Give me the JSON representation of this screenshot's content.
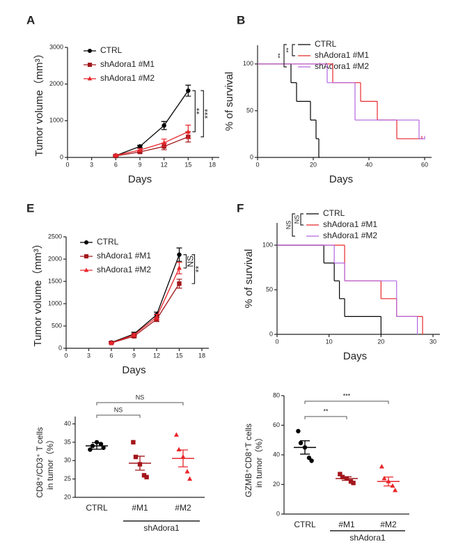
{
  "chart_data": [
    {
      "type": "line",
      "panel": "A",
      "ylabel": "Tumor volume（mm³）",
      "xlabel": "Days",
      "x": [
        6,
        9,
        12,
        15
      ],
      "xlim": [
        0,
        18
      ],
      "xticks": [
        0,
        3,
        6,
        9,
        12,
        15,
        18
      ],
      "ylim": [
        0,
        3000
      ],
      "yticks": [
        0,
        1000,
        2000,
        3000
      ],
      "series": [
        {
          "name": "CTRL",
          "color": "#000000",
          "marker": "circle",
          "values": [
            50,
            300,
            870,
            1820
          ],
          "errors": [
            20,
            30,
            110,
            150
          ]
        },
        {
          "name": "shAdora1 #M1",
          "color": "#a3161c",
          "marker": "square",
          "values": [
            40,
            150,
            300,
            560
          ],
          "errors": [
            15,
            30,
            90,
            140
          ]
        },
        {
          "name": "shAdora1 #M2",
          "color": "#e8262b",
          "marker": "triangle",
          "values": [
            60,
            200,
            400,
            700
          ],
          "errors": [
            20,
            40,
            100,
            180
          ]
        }
      ],
      "annotations": [
        {
          "label": "**",
          "pair": [
            0,
            2
          ]
        },
        {
          "label": "***",
          "pair": [
            0,
            1
          ]
        }
      ]
    },
    {
      "type": "survival",
      "panel": "B",
      "ylabel": "% of survival",
      "xlabel": "Days",
      "xlim": [
        0,
        60
      ],
      "xticks": [
        0,
        20,
        40,
        60
      ],
      "ylim": [
        0,
        120
      ],
      "yticks": [
        0,
        50,
        100
      ],
      "series": [
        {
          "name": "CTRL",
          "color": "#000000",
          "x": [
            0,
            12,
            14,
            19,
            21,
            22
          ],
          "values": [
            100,
            80,
            60,
            40,
            20,
            0
          ],
          "end": 22
        },
        {
          "name": "shAdora1 #M1",
          "color": "#e8262b",
          "x": [
            0,
            27,
            37,
            43,
            50
          ],
          "values": [
            100,
            80,
            60,
            40,
            20
          ],
          "end": 59
        },
        {
          "name": "shAdora1 #M2",
          "color": "#b266e0",
          "x": [
            0,
            25,
            35,
            58
          ],
          "values": [
            100,
            80,
            40,
            20
          ],
          "end": 60
        }
      ],
      "annotations": [
        {
          "label": "**",
          "pair": [
            0,
            1
          ]
        },
        {
          "label": "**",
          "pair": [
            0,
            2
          ]
        }
      ]
    },
    {
      "type": "line",
      "panel": "E",
      "ylabel": "Tumor volume（mm³）",
      "xlabel": "Days",
      "x": [
        6,
        9,
        12,
        15
      ],
      "xlim": [
        0,
        18
      ],
      "xticks": [
        0,
        3,
        6,
        9,
        12,
        15,
        18
      ],
      "ylim": [
        0,
        2500
      ],
      "yticks": [
        0,
        500,
        1000,
        1500,
        2000,
        2500
      ],
      "series": [
        {
          "name": "CTRL",
          "color": "#000000",
          "marker": "circle",
          "values": [
            130,
            320,
            750,
            2100
          ],
          "errors": [
            20,
            40,
            60,
            150
          ]
        },
        {
          "name": "shAdora1 #M1",
          "color": "#a3161c",
          "marker": "square",
          "values": [
            120,
            270,
            650,
            1450
          ],
          "errors": [
            15,
            30,
            50,
            100
          ]
        },
        {
          "name": "shAdora1 #M2",
          "color": "#e8262b",
          "marker": "triangle",
          "values": [
            120,
            300,
            700,
            1800
          ],
          "errors": [
            15,
            35,
            60,
            130
          ]
        }
      ],
      "annotations": [
        {
          "label": "NS",
          "pair": [
            0,
            2
          ]
        },
        {
          "label": "**",
          "pair": [
            0,
            1
          ]
        }
      ]
    },
    {
      "type": "survival",
      "panel": "F",
      "ylabel": "% of survival",
      "xlabel": "Days",
      "xlim": [
        0,
        30
      ],
      "xticks": [
        0,
        10,
        20,
        30
      ],
      "ylim": [
        0,
        125
      ],
      "yticks": [
        0,
        50,
        100
      ],
      "series": [
        {
          "name": "CTRL",
          "color": "#000000",
          "x": [
            0,
            9,
            11,
            12,
            13,
            20
          ],
          "values": [
            100,
            80,
            60,
            40,
            20,
            0
          ],
          "end": 20
        },
        {
          "name": "shAdora1 #M1",
          "color": "#e8262b",
          "x": [
            0,
            13,
            20,
            23,
            28
          ],
          "values": [
            100,
            60,
            40,
            20,
            0
          ],
          "end": 28
        },
        {
          "name": "shAdora1 #M2",
          "color": "#b266e0",
          "x": [
            0,
            11,
            13,
            23,
            27
          ],
          "values": [
            100,
            80,
            60,
            20,
            0
          ],
          "end": 27
        }
      ],
      "annotations": [
        {
          "label": "NS",
          "pair": [
            0,
            1
          ]
        },
        {
          "label": "NS",
          "pair": [
            0,
            2
          ]
        }
      ]
    },
    {
      "type": "dot",
      "ylabel": [
        "CD8⁺/CD3⁺ T cells",
        "in tumor（%）"
      ],
      "categories": [
        "CTRL",
        "#M1",
        "#M2"
      ],
      "group_label": "shAdora1",
      "colors": [
        "#000000",
        "#a3161c",
        "#e8262b"
      ],
      "markers": [
        "circle",
        "square",
        "triangle"
      ],
      "ylim": [
        20,
        42
      ],
      "yticks": [
        20,
        25,
        30,
        35,
        40
      ],
      "points": [
        [
          33,
          34,
          35,
          34.5,
          33.5
        ],
        [
          35,
          31,
          29,
          26,
          25.5
        ],
        [
          37,
          33,
          31,
          27,
          25
        ]
      ],
      "means": [
        34,
        29.3,
        30.6
      ],
      "errors": [
        0.9,
        1.9,
        2.3
      ],
      "annotations": [
        {
          "label": "NS",
          "pair": [
            0,
            1
          ]
        },
        {
          "label": "NS",
          "pair": [
            0,
            2
          ]
        }
      ]
    },
    {
      "type": "dot",
      "ylabel": [
        "GZMB⁺CD8⁺T cells",
        "in tumor（%）"
      ],
      "categories": [
        "CTRL",
        "#M1",
        "#M2"
      ],
      "group_label": "shAdora1",
      "colors": [
        "#000000",
        "#a3161c",
        "#e8262b"
      ],
      "markers": [
        "circle",
        "square",
        "triangle"
      ],
      "ylim": [
        0,
        80
      ],
      "yticks": [
        0,
        20,
        40,
        60,
        80
      ],
      "points": [
        [
          56,
          48,
          45,
          38,
          36
        ],
        [
          27,
          25,
          24,
          22,
          21
        ],
        [
          32,
          24,
          22,
          19,
          16
        ]
      ],
      "means": [
        45,
        24,
        22
      ],
      "errors": [
        4.5,
        1.2,
        3
      ],
      "annotations": [
        {
          "label": "**",
          "pair": [
            0,
            1
          ]
        },
        {
          "label": "***",
          "pair": [
            0,
            2
          ]
        }
      ]
    }
  ]
}
